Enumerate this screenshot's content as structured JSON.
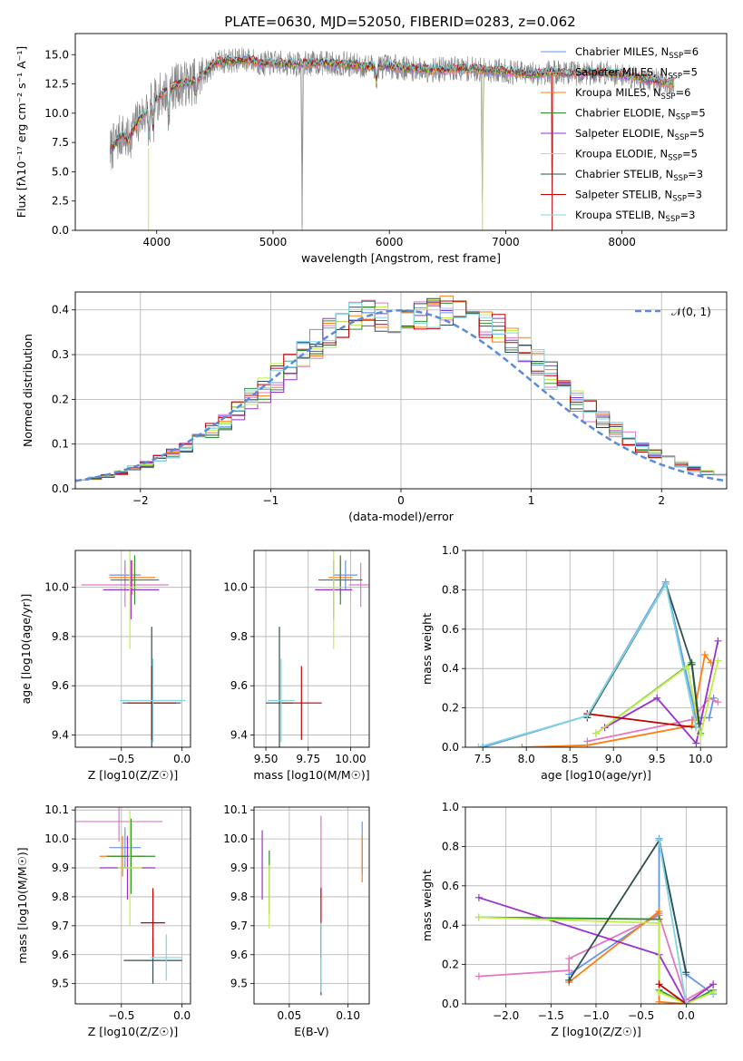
{
  "figure": {
    "title": "PLATE=0630, MJD=52050, FIBERID=0283, z=0.062"
  },
  "chart_data": [
    {
      "id": "spectrum",
      "type": "line",
      "xlabel": "wavelength [Angstrom, rest frame]",
      "ylabel": "Flux [fλ10⁻¹⁷ erg cm⁻² s⁻¹ A⁻¹]",
      "xlim": [
        3300,
        8900
      ],
      "ylim": [
        0,
        16.8
      ],
      "xticks": [
        4000,
        5000,
        6000,
        7000,
        8000
      ],
      "yticks": [
        0.0,
        2.5,
        5.0,
        7.5,
        10.0,
        12.5,
        15.0
      ],
      "grid": false,
      "legend_position": "right",
      "observed_series": {
        "name": "",
        "color": "#808080",
        "x_start": 3600,
        "x_end": 8450
      },
      "continuum": {
        "x": [
          3600,
          3650,
          3700,
          3750,
          3800,
          3850,
          3900,
          3950,
          4000,
          4100,
          4200,
          4300,
          4400,
          4500,
          4600,
          4700,
          4800,
          4900,
          5000,
          5200,
          5400,
          5600,
          5800,
          6000,
          6200,
          6400,
          6600,
          6800,
          7000,
          7200,
          7400,
          7600,
          7800,
          8000,
          8200,
          8450
        ],
        "y": [
          6.8,
          7.5,
          8.2,
          7.6,
          8.6,
          9.5,
          10.0,
          10.6,
          11.3,
          12.0,
          12.5,
          12.6,
          13.3,
          14.3,
          14.5,
          14.5,
          14.6,
          14.2,
          14.3,
          14.2,
          14.3,
          14.2,
          14.0,
          14.0,
          13.8,
          13.7,
          13.8,
          13.7,
          13.6,
          13.3,
          13.5,
          13.4,
          13.5,
          13.3,
          12.9,
          12.5
        ]
      },
      "absorption_lines": [
        {
          "x": 3934,
          "y": 6.5
        },
        {
          "x": 3969,
          "y": 7.5
        },
        {
          "x": 4102,
          "y": 8.5
        },
        {
          "x": 4340,
          "y": 10.5
        },
        {
          "x": 5250,
          "y": 0.0
        },
        {
          "x": 5890,
          "y": 12.0
        },
        {
          "x": 6800,
          "y": 0.0
        },
        {
          "x": 7400,
          "y": 0.0
        }
      ],
      "series": [
        {
          "name": "Chabrier MILES, N_SSP=6",
          "color": "#6495ed"
        },
        {
          "name": "Salpeter MILES, N_SSP=5",
          "color": "#e377c2"
        },
        {
          "name": "Kroupa MILES, N_SSP=6",
          "color": "#ff7f0e"
        },
        {
          "name": "Chabrier ELODIE, N_SSP=5",
          "color": "#2f8f2f"
        },
        {
          "name": "Salpeter ELODIE, N_SSP=5",
          "color": "#9932cc"
        },
        {
          "name": "Kroupa ELODIE, N_SSP=5",
          "color": "#bfef45"
        },
        {
          "name": "Chabrier STELIB, N_SSP=3",
          "color": "#2f4f4f"
        },
        {
          "name": "Salpeter STELIB, N_SSP=3",
          "color": "#c00000"
        },
        {
          "name": "Kroupa STELIB, N_SSP=3",
          "color": "#7fd6e0"
        }
      ],
      "legend_prefixes": [
        "Chabrier MILES, N",
        "Salpeter MILES, N",
        "Kroupa MILES, N",
        "Chabrier ELODIE, N",
        "Salpeter ELODIE, N",
        "Kroupa ELODIE, N",
        "Chabrier STELIB, N",
        "Salpeter STELIB, N",
        "Kroupa STELIB, N"
      ],
      "legend_sub": "SSP",
      "legend_suffixes": [
        "=6",
        "=5",
        "=6",
        "=5",
        "=5",
        "=5",
        "=3",
        "=3",
        "=3"
      ]
    },
    {
      "id": "residuals",
      "type": "bar",
      "xlabel": "(data-model)/error",
      "ylabel": "Normed distribution",
      "xlim": [
        -2.5,
        2.5
      ],
      "ylim": [
        0,
        0.44
      ],
      "xticks": [
        -2,
        -1,
        0,
        1,
        2
      ],
      "yticks": [
        0.0,
        0.1,
        0.2,
        0.3,
        0.4
      ],
      "grid": true,
      "legend_position": "top-right",
      "gaussian_legend": "𝒩(0, 1)",
      "gaussian_color": "#5b8bd8",
      "bin_width": 0.1,
      "bin_start": -2.5,
      "base": [
        0.02,
        0.024,
        0.029,
        0.036,
        0.045,
        0.054,
        0.066,
        0.079,
        0.095,
        0.112,
        0.131,
        0.152,
        0.174,
        0.198,
        0.222,
        0.248,
        0.274,
        0.299,
        0.324,
        0.347,
        0.367,
        0.385,
        0.396,
        0.382,
        0.37,
        0.372,
        0.385,
        0.392,
        0.4,
        0.398,
        0.388,
        0.372,
        0.355,
        0.33,
        0.305,
        0.28,
        0.252,
        0.225,
        0.198,
        0.174,
        0.152,
        0.131,
        0.112,
        0.095,
        0.079,
        0.066,
        0.054,
        0.045,
        0.036,
        0.029
      ],
      "series": [
        {
          "name": "Chabrier MILES",
          "color": "#6495ed"
        },
        {
          "name": "Salpeter MILES",
          "color": "#e377c2"
        },
        {
          "name": "Kroupa MILES",
          "color": "#ff7f0e"
        },
        {
          "name": "Chabrier ELODIE",
          "color": "#2f8f2f"
        },
        {
          "name": "Salpeter ELODIE",
          "color": "#9932cc"
        },
        {
          "name": "Kroupa ELODIE",
          "color": "#bfef45"
        },
        {
          "name": "Chabrier STELIB",
          "color": "#2f4f4f"
        },
        {
          "name": "Salpeter STELIB",
          "color": "#c00000"
        },
        {
          "name": "Kroupa STELIB",
          "color": "#7fd6e0"
        }
      ]
    },
    {
      "id": "Z-age",
      "type": "scatter",
      "xlabel": "Z [log10(Z/Z☉)]",
      "ylabel": "age  [log10(age/yr)]",
      "xlim": [
        -0.88,
        0.07
      ],
      "ylim": [
        9.35,
        10.15
      ],
      "xticks": [
        -0.5,
        0.0
      ],
      "yticks": [
        9.4,
        9.6,
        9.8,
        10.0
      ],
      "grid": true,
      "points": [
        {
          "x": -0.47,
          "y": 10.05,
          "xerr": 0.13,
          "yerr": 0.06,
          "color": "#6495ed"
        },
        {
          "x": -0.47,
          "y": 10.01,
          "xerr": 0.36,
          "yerr": 0.09,
          "color": "#e377c2"
        },
        {
          "x": -0.41,
          "y": 10.04,
          "xerr": 0.19,
          "yerr": 0.07,
          "color": "#ff7f0e"
        },
        {
          "x": -0.39,
          "y": 10.03,
          "xerr": 0.2,
          "yerr": 0.1,
          "color": "#2f8f2f"
        },
        {
          "x": -0.42,
          "y": 9.99,
          "xerr": 0.23,
          "yerr": 0.12,
          "color": "#9932cc"
        },
        {
          "x": -0.43,
          "y": 10.0,
          "xerr": 0.1,
          "yerr": 0.25,
          "color": "#bfef45"
        },
        {
          "x": -0.25,
          "y": 9.53,
          "xerr": 0.24,
          "yerr": 0.31,
          "color": "#2f4f4f"
        },
        {
          "x": -0.25,
          "y": 9.53,
          "xerr": 0.2,
          "yerr": 0.15,
          "color": "#c00000"
        },
        {
          "x": -0.24,
          "y": 9.54,
          "xerr": 0.27,
          "yerr": 0.17,
          "color": "#7fd6e0"
        }
      ]
    },
    {
      "id": "mass-age",
      "type": "scatter",
      "xlabel": "mass [log10(M/M☉)]",
      "ylabel": "",
      "xlim": [
        9.43,
        10.11
      ],
      "ylim": [
        9.35,
        10.15
      ],
      "xticks": [
        9.5,
        9.75,
        10.0
      ],
      "yticks": [
        9.4,
        9.6,
        9.8,
        10.0
      ],
      "grid": true,
      "points": [
        {
          "x": 9.97,
          "y": 10.05,
          "xerr": 0.07,
          "yerr": 0.06,
          "color": "#6495ed"
        },
        {
          "x": 10.06,
          "y": 10.01,
          "xerr": 0.07,
          "yerr": 0.09,
          "color": "#e377c2"
        },
        {
          "x": 9.94,
          "y": 10.04,
          "xerr": 0.07,
          "yerr": 0.07,
          "color": "#ff7f0e"
        },
        {
          "x": 9.94,
          "y": 10.03,
          "xerr": 0.13,
          "yerr": 0.1,
          "color": "#2f8f2f"
        },
        {
          "x": 9.9,
          "y": 9.99,
          "xerr": 0.11,
          "yerr": 0.12,
          "color": "#9932cc"
        },
        {
          "x": 9.9,
          "y": 10.0,
          "xerr": 0.06,
          "yerr": 0.25,
          "color": "#bfef45"
        },
        {
          "x": 9.58,
          "y": 9.53,
          "xerr": 0.08,
          "yerr": 0.31,
          "color": "#2f4f4f"
        },
        {
          "x": 9.71,
          "y": 9.53,
          "xerr": 0.12,
          "yerr": 0.15,
          "color": "#c00000"
        },
        {
          "x": 9.59,
          "y": 9.54,
          "xerr": 0.08,
          "yerr": 0.17,
          "color": "#7fd6e0"
        }
      ]
    },
    {
      "id": "age-weight",
      "type": "line",
      "xlabel": "age  [log10(age/yr)]",
      "ylabel": "mass weight",
      "xlim": [
        7.3,
        10.3
      ],
      "ylim": [
        0,
        1.0
      ],
      "xticks": [
        7.5,
        8.0,
        8.5,
        9.0,
        9.5,
        10.0
      ],
      "yticks": [
        0.0,
        0.2,
        0.4,
        0.6,
        0.8,
        1.0
      ],
      "grid": true,
      "series": [
        {
          "name": "Chabrier MILES",
          "color": "#6495ed",
          "x": [
            7.5,
            8.7,
            9.6,
            9.95,
            10.1,
            10.15
          ],
          "y": [
            0.0,
            0.16,
            0.84,
            0.15,
            0.15,
            0.25
          ]
        },
        {
          "name": "Salpeter MILES",
          "color": "#e377c2",
          "x": [
            8.7,
            9.9,
            10.1,
            10.2
          ],
          "y": [
            0.03,
            0.14,
            0.25,
            0.23
          ]
        },
        {
          "name": "Kroupa MILES",
          "color": "#ff7f0e",
          "x": [
            7.95,
            8.7,
            9.9,
            10.05,
            10.12
          ],
          "y": [
            0.0,
            0.01,
            0.11,
            0.47,
            0.43
          ]
        },
        {
          "name": "Chabrier ELODIE",
          "color": "#2f8f2f",
          "x": [
            8.8,
            9.9,
            10.0
          ],
          "y": [
            0.07,
            0.43,
            0.07
          ]
        },
        {
          "name": "Salpeter ELODIE",
          "color": "#9932cc",
          "x": [
            8.9,
            9.5,
            9.95,
            10.2
          ],
          "y": [
            0.1,
            0.25,
            0.02,
            0.54
          ]
        },
        {
          "name": "Kroupa ELODIE",
          "color": "#bfef45",
          "x": [
            8.8,
            9.85,
            10.0,
            10.2
          ],
          "y": [
            0.07,
            0.41,
            0.06,
            0.44
          ]
        },
        {
          "name": "Chabrier STELIB",
          "color": "#2f4f4f",
          "x": [
            8.7,
            9.6,
            9.9,
            9.98
          ],
          "y": [
            0.15,
            0.83,
            0.42,
            0.12
          ]
        },
        {
          "name": "Salpeter STELIB",
          "color": "#c00000",
          "x": [
            8.7,
            9.95
          ],
          "y": [
            0.17,
            0.1
          ]
        },
        {
          "name": "Kroupa STELIB",
          "color": "#7fd6e0",
          "x": [
            7.45,
            8.7,
            9.6,
            9.95
          ],
          "y": [
            0.0,
            0.16,
            0.83,
            0.1
          ]
        }
      ]
    },
    {
      "id": "Z-mass",
      "type": "scatter",
      "xlabel": "Z [log10(Z/Z☉)]",
      "ylabel": "mass [log10(M/M☉)]",
      "xlim": [
        -0.88,
        0.07
      ],
      "ylim": [
        9.43,
        10.11
      ],
      "xticks": [
        -0.5,
        0.0
      ],
      "yticks": [
        9.5,
        9.6,
        9.7,
        9.8,
        9.9,
        10.0,
        10.1
      ],
      "grid": true,
      "points": [
        {
          "x": -0.47,
          "y": 9.97,
          "xerr": 0.13,
          "yerr": 0.07,
          "color": "#6495ed"
        },
        {
          "x": -0.52,
          "y": 10.06,
          "xerr": 0.36,
          "yerr": 0.07,
          "color": "#e377c2"
        },
        {
          "x": -0.49,
          "y": 9.94,
          "xerr": 0.19,
          "yerr": 0.07,
          "color": "#ff7f0e"
        },
        {
          "x": -0.42,
          "y": 9.94,
          "xerr": 0.2,
          "yerr": 0.13,
          "color": "#2f8f2f"
        },
        {
          "x": -0.45,
          "y": 9.9,
          "xerr": 0.23,
          "yerr": 0.11,
          "color": "#9932cc"
        },
        {
          "x": -0.43,
          "y": 9.9,
          "xerr": 0.1,
          "yerr": 0.2,
          "color": "#bfef45"
        },
        {
          "x": -0.24,
          "y": 9.58,
          "xerr": 0.24,
          "yerr": 0.08,
          "color": "#2f4f4f"
        },
        {
          "x": -0.24,
          "y": 9.71,
          "xerr": 0.1,
          "yerr": 0.12,
          "color": "#c00000"
        },
        {
          "x": -0.13,
          "y": 9.59,
          "xerr": 0.13,
          "yerr": 0.08,
          "color": "#7fd6e0"
        }
      ]
    },
    {
      "id": "ebv-mass",
      "type": "scatter",
      "xlabel": "E(B-V)",
      "ylabel": "",
      "xlim": [
        0.02,
        0.118
      ],
      "ylim": [
        9.43,
        10.11
      ],
      "xticks": [
        0.05,
        0.1
      ],
      "yticks": [
        9.5,
        9.6,
        9.7,
        9.8,
        9.9,
        10.0,
        10.1
      ],
      "grid": true,
      "points": [
        {
          "x": 0.112,
          "y": 9.97,
          "xerr": 0.0,
          "yerr": 0.09,
          "color": "#6495ed"
        },
        {
          "x": 0.077,
          "y": 9.94,
          "xerr": 0.0,
          "yerr": 0.14,
          "color": "#e377c2"
        },
        {
          "x": 0.112,
          "y": 9.93,
          "xerr": 0.0,
          "yerr": 0.08,
          "color": "#ff7f0e"
        },
        {
          "x": 0.033,
          "y": 9.85,
          "xerr": 0.0,
          "yerr": 0.11,
          "color": "#2f8f2f"
        },
        {
          "x": 0.027,
          "y": 9.91,
          "xerr": 0.0,
          "yerr": 0.12,
          "color": "#9932cc"
        },
        {
          "x": 0.033,
          "y": 9.8,
          "xerr": 0.0,
          "yerr": 0.11,
          "color": "#bfef45"
        },
        {
          "x": 0.077,
          "y": 9.58,
          "xerr": 0.0,
          "yerr": 0.12,
          "color": "#2f4f4f"
        },
        {
          "x": 0.077,
          "y": 9.71,
          "xerr": 0.0,
          "yerr": 0.12,
          "color": "#c00000"
        },
        {
          "x": 0.077,
          "y": 9.59,
          "xerr": 0.0,
          "yerr": 0.12,
          "color": "#7fd6e0"
        }
      ]
    },
    {
      "id": "Z-weight",
      "type": "line",
      "xlabel": "Z [log10(Z/Z☉)]",
      "ylabel": "mass weight",
      "xlim": [
        -2.45,
        0.45
      ],
      "ylim": [
        0,
        1.0
      ],
      "xticks": [
        -2.0,
        -1.5,
        -1.0,
        -0.5,
        0.0
      ],
      "yticks": [
        0.0,
        0.2,
        0.4,
        0.6,
        0.8,
        1.0
      ],
      "grid": true,
      "series": [
        {
          "name": "Chabrier MILES",
          "color": "#6495ed",
          "x": [
            -1.3,
            -0.3,
            -0.3,
            0.0,
            0.3
          ],
          "y": [
            0.15,
            0.46,
            0.84,
            0.15,
            0.05
          ]
        },
        {
          "name": "Salpeter MILES",
          "color": "#e377c2",
          "x": [
            -2.3,
            -1.3,
            -1.3,
            -0.3,
            0.0,
            0.3
          ],
          "y": [
            0.14,
            0.17,
            0.23,
            0.45,
            0.02,
            0.1
          ]
        },
        {
          "name": "Kroupa MILES",
          "color": "#ff7f0e",
          "x": [
            -1.3,
            -0.3,
            -0.3,
            0.0
          ],
          "y": [
            0.11,
            0.47,
            0.01,
            0.0
          ]
        },
        {
          "name": "Chabrier ELODIE",
          "color": "#2f8f2f",
          "x": [
            -2.3,
            -0.3,
            -0.3,
            0.0,
            0.3
          ],
          "y": [
            0.44,
            0.43,
            0.07,
            0.0,
            0.07
          ]
        },
        {
          "name": "Salpeter ELODIE",
          "color": "#9932cc",
          "x": [
            -2.3,
            -0.3,
            0.0,
            0.3
          ],
          "y": [
            0.54,
            0.25,
            0.0,
            0.1
          ]
        },
        {
          "name": "Kroupa ELODIE",
          "color": "#bfef45",
          "x": [
            -2.3,
            -0.3,
            -0.3,
            0.0,
            0.3
          ],
          "y": [
            0.44,
            0.41,
            0.06,
            0.0,
            0.06
          ]
        },
        {
          "name": "Chabrier STELIB",
          "color": "#2f4f4f",
          "x": [
            -1.3,
            -0.3,
            0.0
          ],
          "y": [
            0.12,
            0.83,
            0.16
          ]
        },
        {
          "name": "Salpeter STELIB",
          "color": "#c00000",
          "x": [
            -0.3,
            0.0
          ],
          "y": [
            0.1,
            0.0
          ]
        },
        {
          "name": "Kroupa STELIB",
          "color": "#7fd6e0",
          "x": [
            -0.3,
            0.0
          ],
          "y": [
            0.83,
            0.0
          ]
        }
      ]
    }
  ]
}
